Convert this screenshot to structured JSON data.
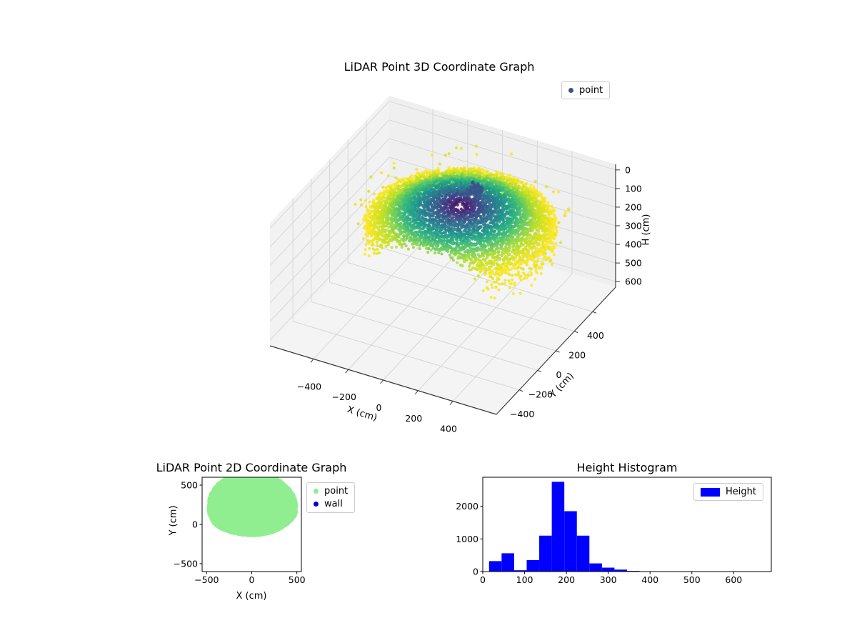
{
  "chart_data": [
    {
      "id": "lidar-3d",
      "type": "scatter3d",
      "title": "LiDAR Point 3D Coordinate Graph",
      "xlabel": "X (cm)",
      "ylabel": "Y (cm)",
      "zlabel": "H (cm)",
      "x_ticks": [
        -400,
        -200,
        0,
        200,
        400
      ],
      "y_ticks": [
        -400,
        -200,
        0,
        200,
        400
      ],
      "h_ticks": [
        0,
        100,
        200,
        300,
        400,
        500,
        600
      ],
      "xlim": [
        -650,
        650
      ],
      "ylim": [
        -650,
        650
      ],
      "hlim": [
        -30,
        630
      ],
      "h_axis_inverted": true,
      "grid": true,
      "pane_color": "#f2f2f2",
      "legend": [
        {
          "label": "point",
          "color": "#3b528b"
        }
      ],
      "legend_position": "upper right, outside top",
      "colormap": "viridis",
      "color_encodes": "horizontal radius from scanner (purple center to yellow rim)",
      "cloud": {
        "shape": "dome/disc of LiDAR returns with front sector cut away",
        "center_xy": [
          0,
          190
        ],
        "radius_cm": 490,
        "front_cut_y_cm": -150,
        "dome_height_range_cm": [
          140,
          230
        ],
        "wall_max_height_cm": 380,
        "outlier_ring_max_cm": 560,
        "small_cluster": {
          "x": 60,
          "y": 240,
          "h": 55,
          "n": 45,
          "color": "#3b528b"
        },
        "approx_point_count": 6000
      }
    },
    {
      "id": "lidar-2d",
      "type": "scatter",
      "title": "LiDAR Point 2D Coordinate Graph",
      "xlabel": "X (cm)",
      "ylabel": "Y (cm)",
      "x_ticks": [
        -500,
        0,
        500
      ],
      "y_ticks": [
        -500,
        0,
        500
      ],
      "xlim": [
        -550,
        550
      ],
      "ylim": [
        -600,
        600
      ],
      "legend": [
        {
          "label": "point",
          "color": "#90EE90"
        },
        {
          "label": "wall",
          "color": "#0000CD"
        }
      ],
      "legend_position": "outside right of axes",
      "point_region": {
        "note": "dense light-green scatter blob filling this region, clipped to axes box",
        "center": [
          0,
          185
        ],
        "rx": 505,
        "ry_top": 520,
        "ry_bottom": 345,
        "color": "#90EE90"
      }
    },
    {
      "id": "height-histogram",
      "type": "bar",
      "title": "Height Histogram",
      "legend": [
        {
          "label": "Height",
          "color": "#0000FF"
        }
      ],
      "legend_position": "upper right inside axes",
      "bin_start": 15,
      "bin_width": 30,
      "counts": [
        320,
        560,
        40,
        350,
        1100,
        2750,
        1850,
        1100,
        250,
        120,
        60,
        20
      ],
      "x_ticks": [
        0,
        100,
        200,
        300,
        400,
        500,
        600
      ],
      "y_ticks": [
        0,
        1000,
        2000
      ],
      "xlim": [
        0,
        690
      ],
      "ylim": [
        0,
        2890
      ]
    }
  ]
}
